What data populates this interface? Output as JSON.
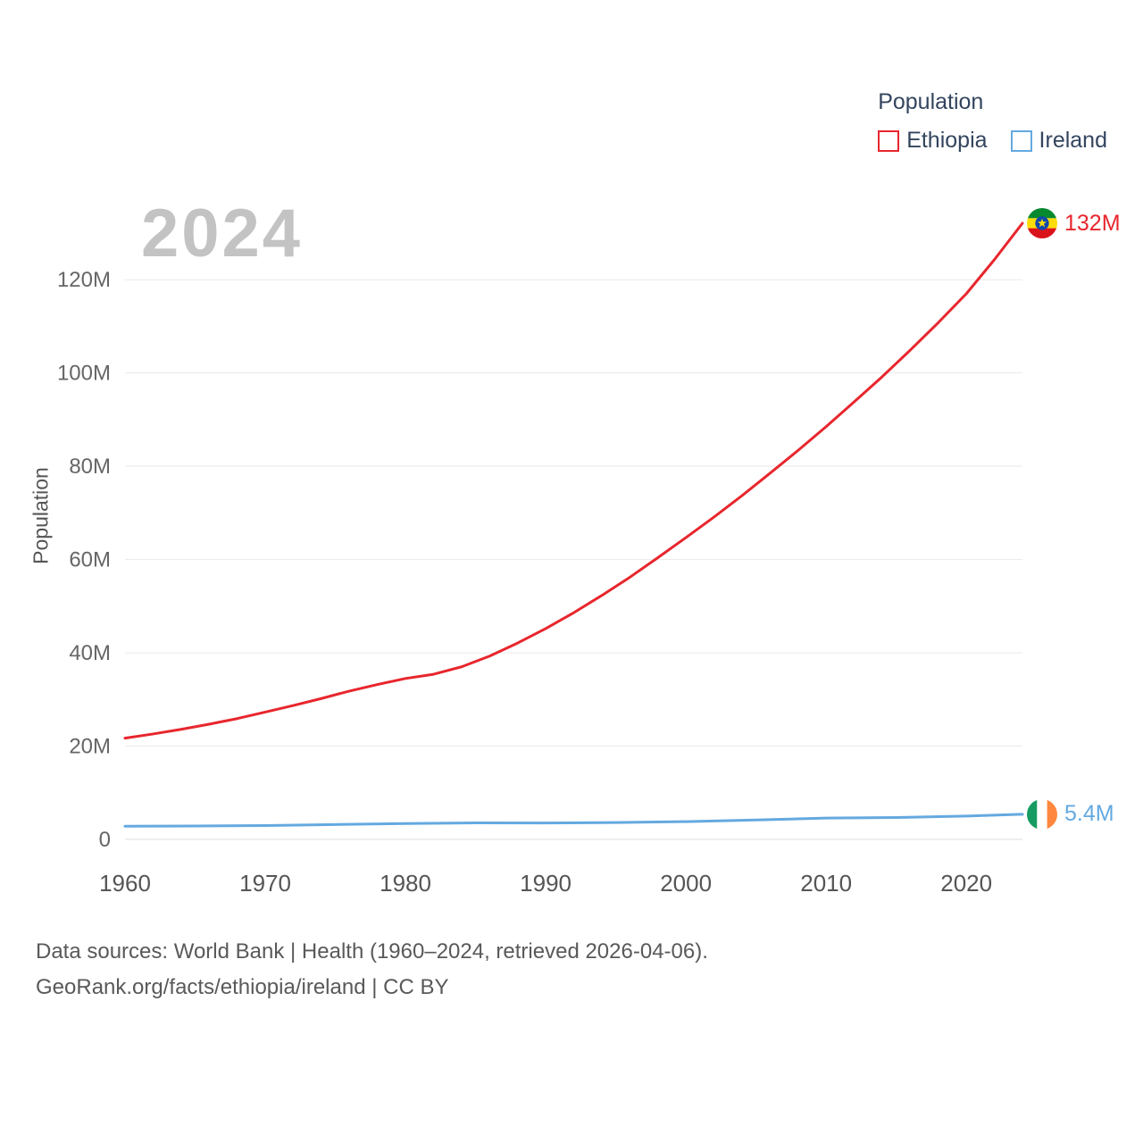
{
  "watermark_year": "2024",
  "legend": {
    "title": "Population",
    "items": [
      {
        "label": "Ethiopia",
        "color": "#e8262d"
      },
      {
        "label": "Ireland",
        "color": "#64a9e0"
      }
    ]
  },
  "footer": {
    "line1": "Data sources: World Bank | Health (1960–2024, retrieved 2026-04-06).",
    "line2": "GeoRank.org/facts/ethiopia/ireland | CC BY"
  },
  "chart_data": {
    "type": "line",
    "title": "Population",
    "ylabel": "Population",
    "xlabel": "",
    "xlim": [
      1960,
      2024
    ],
    "ylim_millions": [
      0,
      140
    ],
    "grid": true,
    "legend_position": "top-right",
    "xticks": [
      1960,
      1970,
      1980,
      1990,
      2000,
      2010,
      2020
    ],
    "yticks": [
      {
        "value": 0,
        "label": "0"
      },
      {
        "value": 20,
        "label": "20M"
      },
      {
        "value": 40,
        "label": "40M"
      },
      {
        "value": 60,
        "label": "60M"
      },
      {
        "value": 80,
        "label": "80M"
      },
      {
        "value": 100,
        "label": "100M"
      },
      {
        "value": 120,
        "label": "120M"
      }
    ],
    "series": [
      {
        "name": "Ethiopia",
        "color": "#e8262d",
        "end_label": "132M",
        "flag": "ethiopia",
        "years": [
          1960,
          1962,
          1964,
          1966,
          1968,
          1970,
          1972,
          1974,
          1976,
          1978,
          1980,
          1982,
          1984,
          1986,
          1988,
          1990,
          1992,
          1994,
          1996,
          1998,
          2000,
          2002,
          2004,
          2006,
          2008,
          2010,
          2012,
          2014,
          2016,
          2018,
          2020,
          2022,
          2024
        ],
        "values_millions": [
          21.7,
          22.6,
          23.6,
          24.7,
          25.9,
          27.3,
          28.7,
          30.2,
          31.8,
          33.2,
          34.5,
          35.4,
          37.0,
          39.3,
          42.1,
          45.2,
          48.6,
          52.3,
          56.2,
          60.4,
          64.7,
          69.1,
          73.7,
          78.5,
          83.4,
          88.5,
          93.8,
          99.2,
          104.9,
          110.8,
          117.0,
          124.3,
          132.1
        ]
      },
      {
        "name": "Ireland",
        "color": "#64a9e0",
        "end_label": "5.4M",
        "flag": "ireland",
        "years": [
          1960,
          1965,
          1970,
          1975,
          1980,
          1985,
          1990,
          1995,
          2000,
          2005,
          2010,
          2015,
          2020,
          2024
        ],
        "values_millions": [
          2.83,
          2.88,
          2.96,
          3.18,
          3.4,
          3.54,
          3.51,
          3.61,
          3.81,
          4.16,
          4.56,
          4.7,
          4.99,
          5.38
        ]
      }
    ]
  }
}
